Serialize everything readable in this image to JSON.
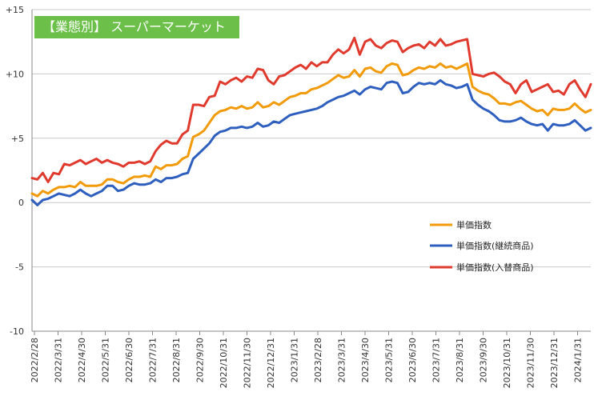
{
  "chart_data": {
    "type": "line",
    "title": "【業態別】 スーパーマーケット",
    "xlabel": "",
    "ylabel": "",
    "ylim": [
      -10,
      15
    ],
    "yticks": [
      "-10",
      "-5",
      "0",
      "+5",
      "+10",
      "+15"
    ],
    "ytick_values": [
      -10,
      -5,
      0,
      5,
      10,
      15
    ],
    "grid": true,
    "legend_position": "right",
    "xticks": [
      "2022/2/28",
      "2022/3/31",
      "2022/4/30",
      "2022/5/31",
      "2022/6/30",
      "2022/7/31",
      "2022/8/31",
      "2022/9/30",
      "2022/10/31",
      "2022/11/30",
      "2022/12/31",
      "2023/1/31",
      "2023/2/28",
      "2023/3/31",
      "2023/4/30",
      "2023/5/31",
      "2023/6/30",
      "2023/7/31",
      "2023/8/31",
      "2023/9/30",
      "2023/10/31",
      "2023/11/30",
      "2023/12/31",
      "2024/1/31"
    ],
    "series": [
      {
        "name": "単価指数",
        "color": "#f29b0a",
        "values": [
          0.7,
          0.5,
          0.9,
          0.7,
          1.0,
          1.2,
          1.2,
          1.3,
          1.2,
          1.6,
          1.3,
          1.3,
          1.3,
          1.4,
          1.8,
          1.8,
          1.6,
          1.5,
          1.8,
          2.0,
          2.0,
          2.1,
          2.0,
          2.8,
          2.6,
          2.9,
          2.9,
          3.0,
          3.4,
          3.6,
          5.1,
          5.3,
          5.6,
          6.2,
          6.8,
          7.1,
          7.2,
          7.4,
          7.3,
          7.5,
          7.3,
          7.4,
          7.8,
          7.4,
          7.5,
          7.8,
          7.6,
          7.9,
          8.2,
          8.3,
          8.5,
          8.5,
          8.8,
          8.9,
          9.1,
          9.3,
          9.6,
          9.9,
          9.7,
          9.8,
          10.3,
          9.8,
          10.4,
          10.5,
          10.2,
          10.1,
          10.6,
          10.8,
          10.7,
          9.9,
          10.0,
          10.3,
          10.5,
          10.4,
          10.6,
          10.5,
          10.8,
          10.5,
          10.6,
          10.4,
          10.6,
          10.8,
          9.0,
          8.7,
          8.5,
          8.4,
          8.1,
          7.7,
          7.7,
          7.6,
          7.8,
          7.9,
          7.6,
          7.3,
          7.1,
          7.2,
          6.8,
          7.3,
          7.2,
          7.2,
          7.3,
          7.7,
          7.3,
          7.0,
          7.2
        ]
      },
      {
        "name": "単価指数(継続商品)",
        "color": "#2e5fbf",
        "values": [
          0.2,
          -0.2,
          0.2,
          0.3,
          0.5,
          0.7,
          0.6,
          0.5,
          0.7,
          1.0,
          0.7,
          0.5,
          0.7,
          0.9,
          1.3,
          1.3,
          0.9,
          1.0,
          1.3,
          1.5,
          1.4,
          1.4,
          1.5,
          1.8,
          1.6,
          1.9,
          1.9,
          2.0,
          2.2,
          2.3,
          3.4,
          3.8,
          4.2,
          4.6,
          5.2,
          5.5,
          5.6,
          5.8,
          5.8,
          5.9,
          5.8,
          5.9,
          6.2,
          5.9,
          6.0,
          6.3,
          6.2,
          6.5,
          6.8,
          6.9,
          7.0,
          7.1,
          7.2,
          7.3,
          7.5,
          7.8,
          8.0,
          8.2,
          8.3,
          8.5,
          8.7,
          8.4,
          8.8,
          9.0,
          8.9,
          8.8,
          9.3,
          9.4,
          9.3,
          8.5,
          8.6,
          9.0,
          9.3,
          9.2,
          9.3,
          9.2,
          9.5,
          9.2,
          9.1,
          8.9,
          9.0,
          9.2,
          8.0,
          7.6,
          7.3,
          7.1,
          6.8,
          6.4,
          6.3,
          6.3,
          6.4,
          6.6,
          6.3,
          6.1,
          6.0,
          6.1,
          5.6,
          6.1,
          6.0,
          6.0,
          6.1,
          6.4,
          6.0,
          5.6,
          5.8
        ]
      },
      {
        "name": "単価指数(入替商品)",
        "color": "#e03a2e",
        "values": [
          1.9,
          1.8,
          2.3,
          1.6,
          2.3,
          2.2,
          3.0,
          2.9,
          3.1,
          3.3,
          3.0,
          3.2,
          3.4,
          3.1,
          3.3,
          3.1,
          3.0,
          2.8,
          3.1,
          3.1,
          3.2,
          3.0,
          3.2,
          4.0,
          4.5,
          4.8,
          4.6,
          4.6,
          5.3,
          5.6,
          7.6,
          7.6,
          7.5,
          8.2,
          8.3,
          9.4,
          9.2,
          9.5,
          9.7,
          9.4,
          9.8,
          9.7,
          10.4,
          10.3,
          9.5,
          9.2,
          9.8,
          9.9,
          10.2,
          10.5,
          10.7,
          10.4,
          10.9,
          10.6,
          10.9,
          10.9,
          11.5,
          11.9,
          11.6,
          11.9,
          12.8,
          11.5,
          12.5,
          12.7,
          12.2,
          12.0,
          12.4,
          12.6,
          12.5,
          11.7,
          12.0,
          12.2,
          12.3,
          12.0,
          12.5,
          12.2,
          12.7,
          12.2,
          12.3,
          12.5,
          12.6,
          12.7,
          10.0,
          9.9,
          9.8,
          10.0,
          10.1,
          9.8,
          9.4,
          9.2,
          8.5,
          9.2,
          9.5,
          8.6,
          8.8,
          9.0,
          9.2,
          8.6,
          8.7,
          8.4,
          9.2,
          9.5,
          8.8,
          8.2,
          9.2
        ]
      }
    ]
  }
}
